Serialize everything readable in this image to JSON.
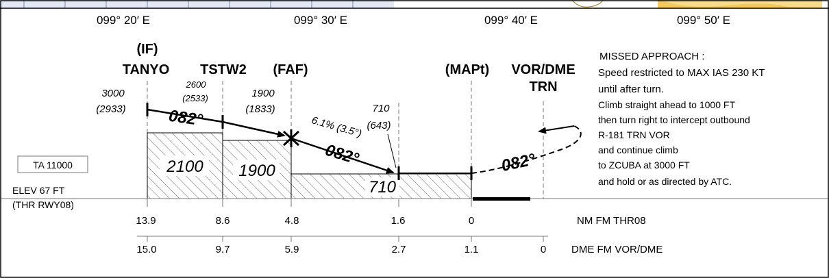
{
  "longitudes": [
    "099° 20′ E",
    "099° 30′ E",
    "099° 40′ E",
    "099° 50′ E"
  ],
  "fixes": {
    "if_label": "(IF)",
    "tanyo": "TANYO",
    "tstw2": "TSTW2",
    "faf": "(FAF)",
    "mapt": "(MAPt)",
    "vordme": "VOR/DME",
    "trn": "TRN"
  },
  "altitudes": {
    "tanyo_alt": "3000",
    "tanyo_height": "(2933)",
    "tstw2_alt": "2600",
    "tstw2_height": "(2533)",
    "faf_alt": "1900",
    "faf_height": "(1833)",
    "sdf_alt": "710",
    "sdf_height": "(643)"
  },
  "tracks": {
    "initial": "082°",
    "final": "082°",
    "missed": "082°",
    "gradient": "6.1% (3.5°)"
  },
  "minimum_altitudes": [
    "2100",
    "1900",
    "710"
  ],
  "transition_altitude": "TA 11000",
  "elevation": "ELEV 67 FT",
  "threshold": "(THR RWY08)",
  "missed_approach": {
    "title": "MISSED  APPROACH :",
    "lines": [
      "Speed restricted to MAX IAS 230 KT",
      "until after turn.",
      "Climb straight ahead to 1000 FT",
      "then turn right to intercept outbound",
      "R-181 TRN VOR",
      "and continue climb",
      "to ZCUBA at 3000 FT",
      "and hold or as directed by ATC."
    ]
  },
  "nm_scale": {
    "values": [
      "13.9",
      "8.6",
      "4.8",
      "1.6",
      "0"
    ],
    "label": "NM FM THR08"
  },
  "dme_scale": {
    "values": [
      "15.0",
      "9.7",
      "5.9",
      "2.7",
      "1.1",
      "0"
    ],
    "label": "DME FM VOR/DME"
  }
}
